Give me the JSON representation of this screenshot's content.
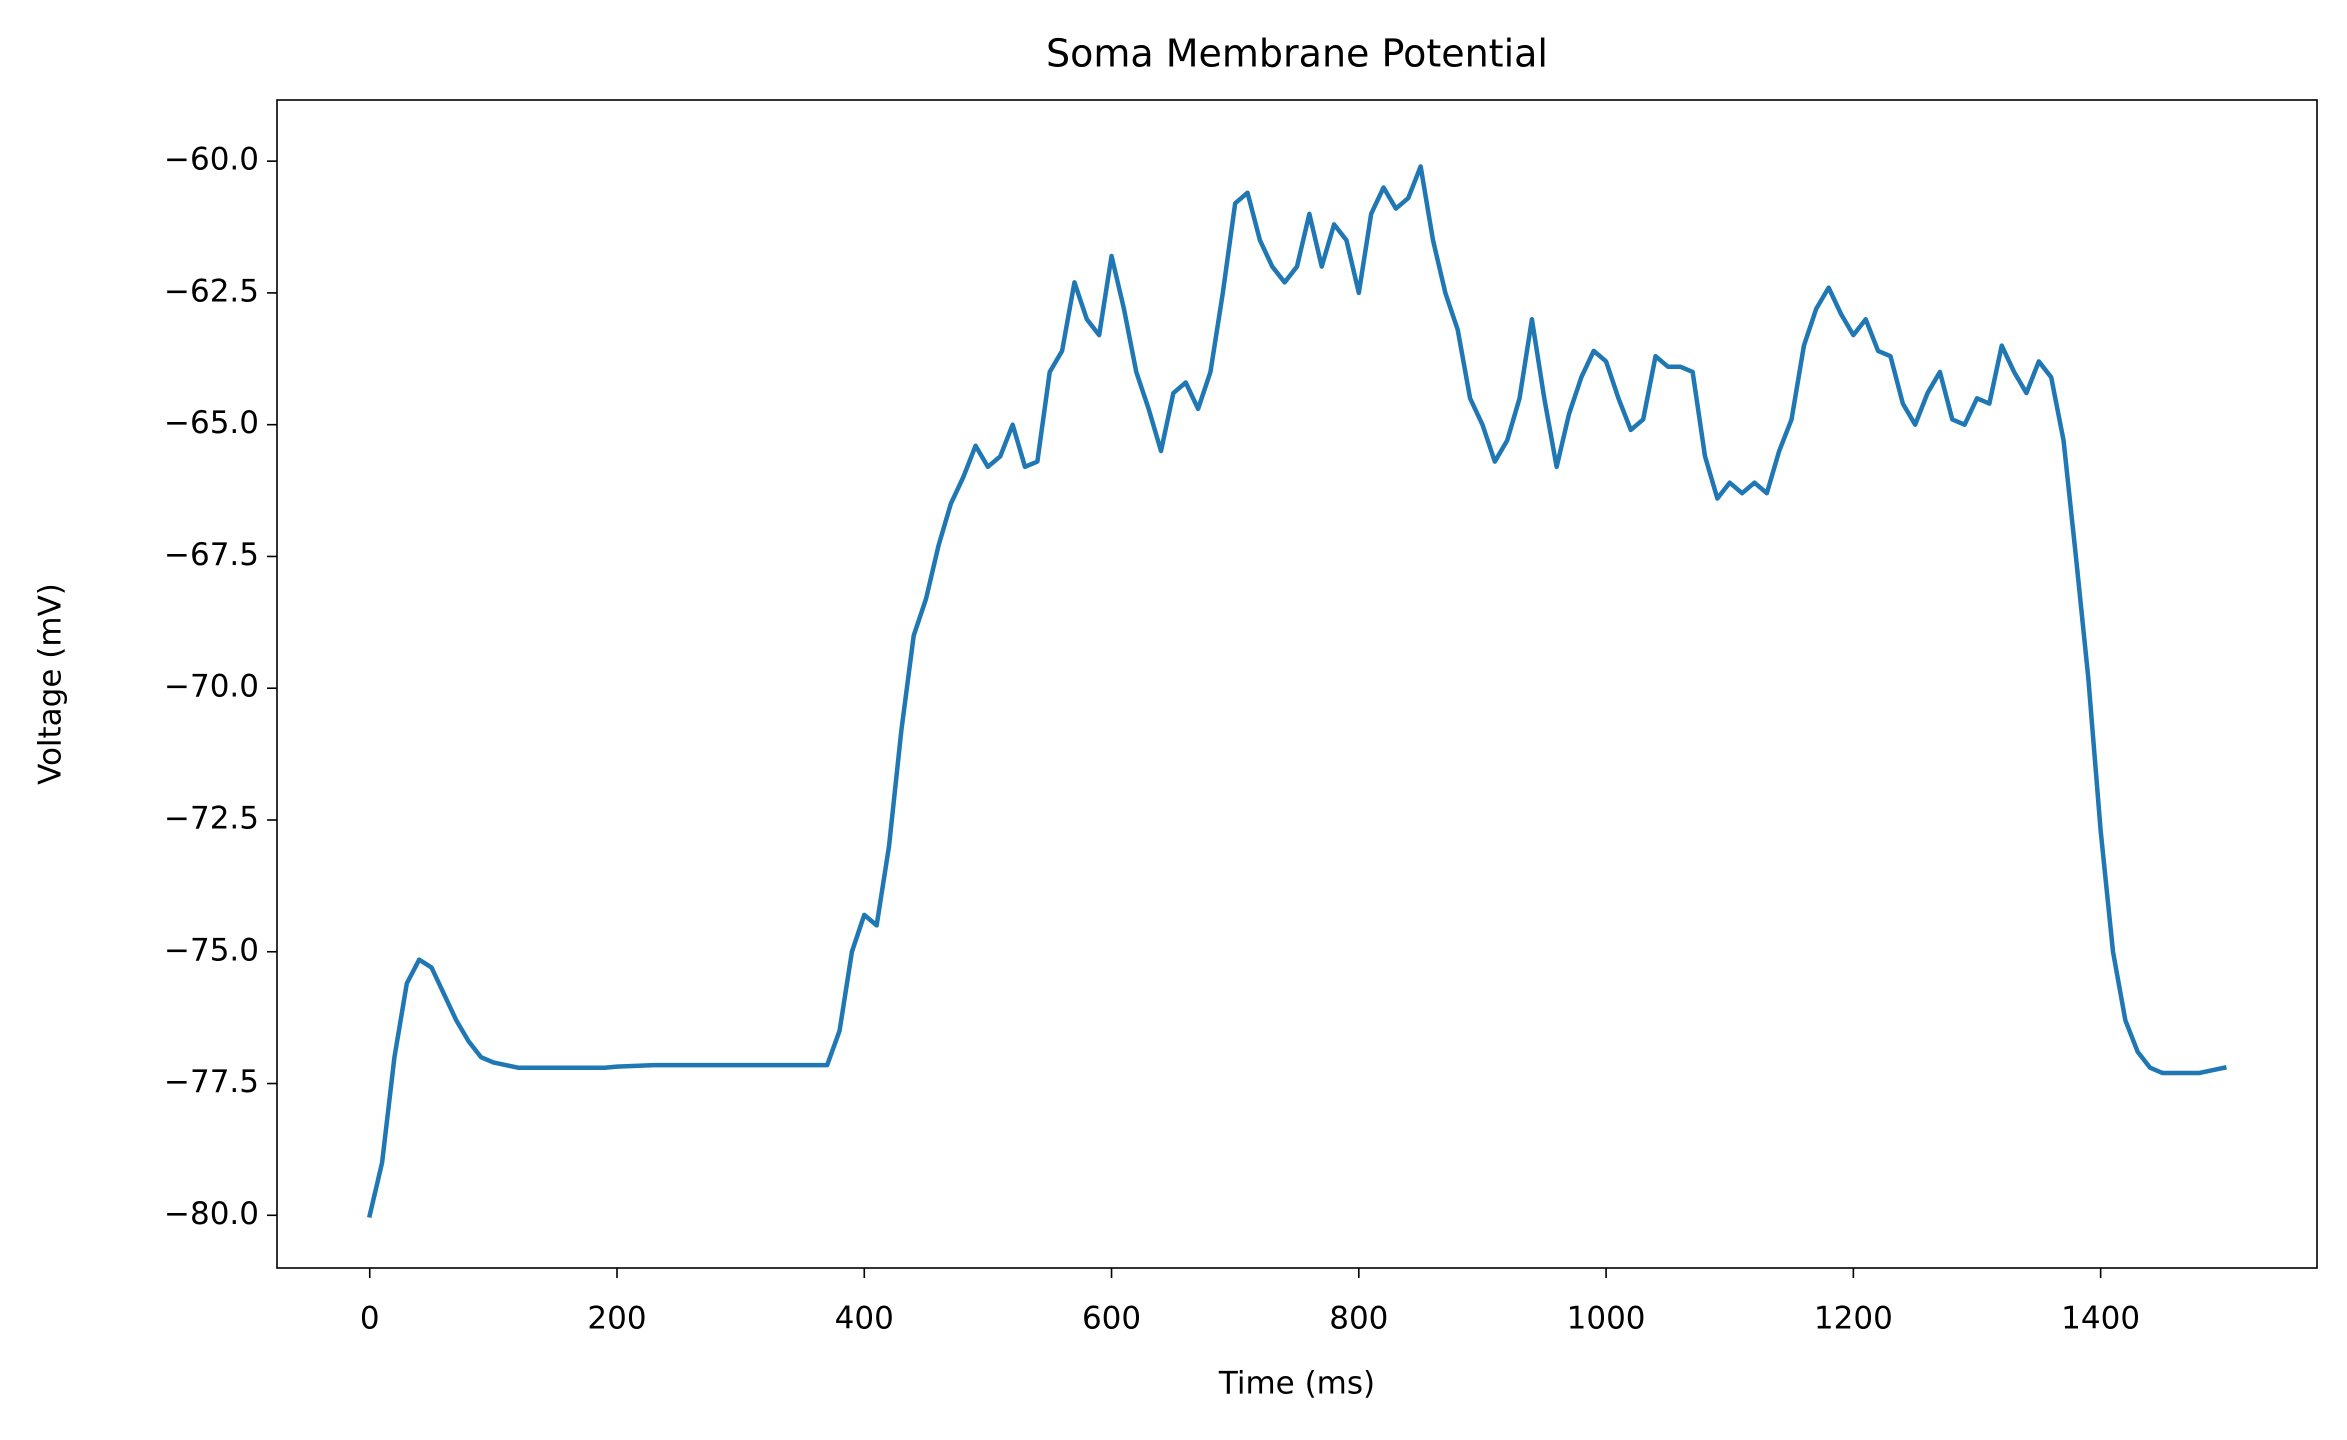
{
  "chart_data": {
    "type": "line",
    "title": "Soma Membrane Potential",
    "x_label": "Time (ms)",
    "y_label": "Voltage (mV)",
    "color": "#1f77b4",
    "xlim": [
      -75,
      1575
    ],
    "ylim": [
      -81.0,
      -58.84
    ],
    "xticks": [
      0,
      200,
      400,
      600,
      800,
      1000,
      1200,
      1400
    ],
    "yticks": [
      {
        "value": -60,
        "label": "−60.0"
      },
      {
        "value": -62.5,
        "label": "−62.5"
      },
      {
        "value": -65,
        "label": "−65.0"
      },
      {
        "value": -67.5,
        "label": "−67.5"
      },
      {
        "value": -70,
        "label": "−70.0"
      },
      {
        "value": -72.5,
        "label": "−72.5"
      },
      {
        "value": -75,
        "label": "−75.0"
      },
      {
        "value": -77.5,
        "label": "−77.5"
      },
      {
        "value": -80,
        "label": "−80.0"
      }
    ],
    "x": [
      0,
      10,
      20,
      30,
      40,
      50,
      60,
      70,
      80,
      90,
      100,
      110,
      120,
      130,
      140,
      150,
      160,
      170,
      180,
      190,
      200,
      210,
      220,
      230,
      240,
      250,
      260,
      270,
      280,
      290,
      300,
      310,
      320,
      330,
      340,
      350,
      360,
      370,
      380,
      390,
      400,
      410,
      420,
      430,
      440,
      450,
      460,
      470,
      480,
      490,
      500,
      510,
      520,
      530,
      540,
      550,
      560,
      570,
      580,
      590,
      600,
      610,
      620,
      630,
      640,
      650,
      660,
      670,
      680,
      690,
      700,
      710,
      720,
      730,
      740,
      750,
      760,
      770,
      780,
      790,
      800,
      810,
      820,
      830,
      840,
      850,
      860,
      870,
      880,
      890,
      900,
      910,
      920,
      930,
      940,
      950,
      960,
      970,
      980,
      990,
      1000,
      1010,
      1020,
      1030,
      1040,
      1050,
      1060,
      1070,
      1080,
      1090,
      1100,
      1110,
      1120,
      1130,
      1140,
      1150,
      1160,
      1170,
      1180,
      1190,
      1200,
      1210,
      1220,
      1230,
      1240,
      1250,
      1260,
      1270,
      1280,
      1290,
      1300,
      1310,
      1320,
      1330,
      1340,
      1350,
      1360,
      1370,
      1380,
      1390,
      1400,
      1410,
      1420,
      1430,
      1440,
      1450,
      1460,
      1470,
      1480,
      1490,
      1500
    ],
    "values": [
      -80.0,
      -79.0,
      -77.0,
      -75.6,
      -75.15,
      -75.3,
      -75.8,
      -76.3,
      -76.7,
      -77.0,
      -77.1,
      -77.15,
      -77.2,
      -77.2,
      -77.2,
      -77.2,
      -77.2,
      -77.2,
      -77.2,
      -77.2,
      -77.18,
      -77.17,
      -77.16,
      -77.15,
      -77.15,
      -77.15,
      -77.15,
      -77.15,
      -77.15,
      -77.15,
      -77.15,
      -77.15,
      -77.15,
      -77.15,
      -77.15,
      -77.15,
      -77.15,
      -77.15,
      -76.5,
      -75.0,
      -74.3,
      -74.5,
      -73.0,
      -70.8,
      -69.0,
      -68.3,
      -67.3,
      -66.5,
      -66.0,
      -65.4,
      -65.8,
      -65.6,
      -65.0,
      -65.8,
      -65.7,
      -64.0,
      -63.6,
      -62.3,
      -63.0,
      -63.3,
      -61.8,
      -62.8,
      -64.0,
      -64.7,
      -65.5,
      -64.4,
      -64.2,
      -64.7,
      -64.0,
      -62.5,
      -60.8,
      -60.6,
      -61.5,
      -62.0,
      -62.3,
      -62.0,
      -61.0,
      -62.0,
      -61.2,
      -61.5,
      -62.5,
      -61.0,
      -60.5,
      -60.9,
      -60.7,
      -60.1,
      -61.5,
      -62.5,
      -63.2,
      -64.5,
      -65.0,
      -65.7,
      -65.3,
      -64.5,
      -63.0,
      -64.5,
      -65.8,
      -64.8,
      -64.1,
      -63.6,
      -63.8,
      -64.5,
      -65.1,
      -64.9,
      -63.7,
      -63.9,
      -63.9,
      -64.0,
      -65.6,
      -66.4,
      -66.1,
      -66.3,
      -66.1,
      -66.3,
      -65.5,
      -64.9,
      -63.5,
      -62.8,
      -62.4,
      -62.9,
      -63.3,
      -63.0,
      -63.6,
      -63.7,
      -64.6,
      -65.0,
      -64.4,
      -64.0,
      -64.9,
      -65.0,
      -64.5,
      -64.6,
      -63.5,
      -64.0,
      -64.4,
      -63.8,
      -64.1,
      -65.3,
      -67.5,
      -69.8,
      -72.7,
      -75.0,
      -76.3,
      -76.9,
      -77.2,
      -77.3,
      -77.3,
      -77.3,
      -77.3,
      -77.25,
      -77.2
    ]
  }
}
